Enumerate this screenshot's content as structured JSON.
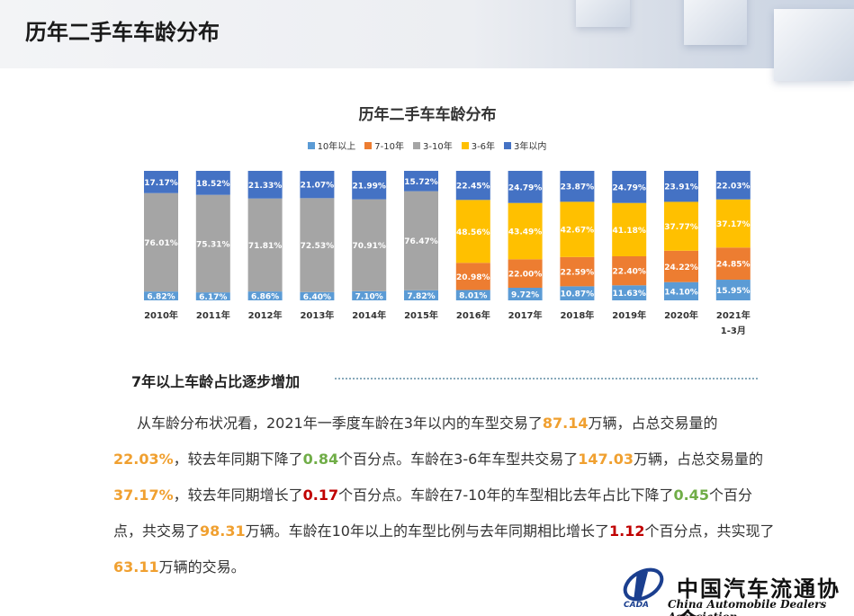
{
  "header": {
    "title": "历年二手车车龄分布"
  },
  "chart_data": {
    "type": "stacked_bar",
    "title": "历年二手车车龄分布",
    "categories": [
      "2010年",
      "2011年",
      "2012年",
      "2013年",
      "2014年",
      "2015年",
      "2016年",
      "2017年",
      "2018年",
      "2019年",
      "2020年",
      "2021年\n1-3月"
    ],
    "ylim": [
      0,
      100
    ],
    "legend": "top",
    "series": [
      {
        "name": "10年以上",
        "color": "#5b9bd5",
        "values": [
          6.82,
          6.17,
          6.86,
          6.4,
          7.1,
          7.82,
          8.01,
          9.72,
          10.87,
          11.63,
          14.1,
          15.95
        ],
        "value_labels": [
          "6.82%",
          "6.17%",
          "6.86%",
          "6.40%",
          "7.10%",
          "7.82%",
          "8.01%",
          "9.72%",
          "10.87%",
          "11.63%",
          "14.10%",
          "15.95%"
        ]
      },
      {
        "name": "7-10年",
        "color": "#ed7d31",
        "values": [
          null,
          null,
          null,
          null,
          null,
          null,
          20.98,
          22.0,
          22.59,
          22.4,
          24.22,
          24.85
        ],
        "value_labels": [
          null,
          null,
          null,
          null,
          null,
          null,
          "20.98%",
          "22.00%",
          "22.59%",
          "22.40%",
          "24.22%",
          "24.85%"
        ]
      },
      {
        "name": "3-10年",
        "color": "#a5a5a5",
        "values": [
          76.01,
          75.31,
          71.81,
          72.53,
          70.91,
          76.47,
          null,
          null,
          null,
          null,
          null,
          null
        ],
        "value_labels": [
          "76.01%",
          "75.31%",
          "71.81%",
          "72.53%",
          "70.91%",
          "76.47%",
          null,
          null,
          null,
          null,
          null,
          null
        ]
      },
      {
        "name": "3-6年",
        "color": "#ffc000",
        "values": [
          null,
          null,
          null,
          null,
          null,
          null,
          48.56,
          43.49,
          42.67,
          41.18,
          37.77,
          37.17
        ],
        "value_labels": [
          null,
          null,
          null,
          null,
          null,
          null,
          "48.56%",
          "43.49%",
          "42.67%",
          "41.18%",
          "37.77%",
          "37.17%"
        ]
      },
      {
        "name": "3年以内",
        "color": "#4472c4",
        "values": [
          17.17,
          18.52,
          21.33,
          21.07,
          21.99,
          15.72,
          22.45,
          24.79,
          23.87,
          24.79,
          23.91,
          22.03
        ],
        "value_labels": [
          "17.17%",
          "18.52%",
          "21.33%",
          "21.07%",
          "21.99%",
          "15.72%",
          "22.45%",
          "24.79%",
          "23.87%",
          "24.79%",
          "23.91%",
          "22.03%"
        ]
      }
    ]
  },
  "section": {
    "heading": "7年以上车龄占比逐步增加",
    "paragraph": [
      {
        "text": "从车龄分布状况看，2021年一季度车龄在3年以内的车型交易了"
      },
      {
        "text": "87.14",
        "color": "#f0a030"
      },
      {
        "text": "万辆，占总交易量的"
      },
      {
        "text": "22.03%",
        "color": "#f0a030"
      },
      {
        "text": "，较去年同期下降了"
      },
      {
        "text": "0.84",
        "color": "#70ad47"
      },
      {
        "text": "个百分点。车龄在3-6年车型共交易了"
      },
      {
        "text": "147.03",
        "color": "#f0a030"
      },
      {
        "text": "万辆，占总交易量的"
      },
      {
        "text": "37.17%",
        "color": "#f0a030"
      },
      {
        "text": "，较去年同期增长了"
      },
      {
        "text": "0.17",
        "color": "#c00000"
      },
      {
        "text": "个百分点。车龄在7-10年的车型相比去年占比下降了"
      },
      {
        "text": "0.45",
        "color": "#70ad47"
      },
      {
        "text": "个百分点，共交易了"
      },
      {
        "text": "98.31",
        "color": "#f0a030"
      },
      {
        "text": "万辆。车龄在10年以上的车型比例与去年同期相比增长了"
      },
      {
        "text": "1.12",
        "color": "#c00000"
      },
      {
        "text": "个百分点，共实现了"
      },
      {
        "text": "63.11",
        "color": "#f0a030"
      },
      {
        "text": "万辆的交易。"
      }
    ]
  },
  "footer": {
    "logo_text": "CADA",
    "name_cn": "中国汽车流通协会",
    "name_en": "China Automobile Dealers Association"
  }
}
